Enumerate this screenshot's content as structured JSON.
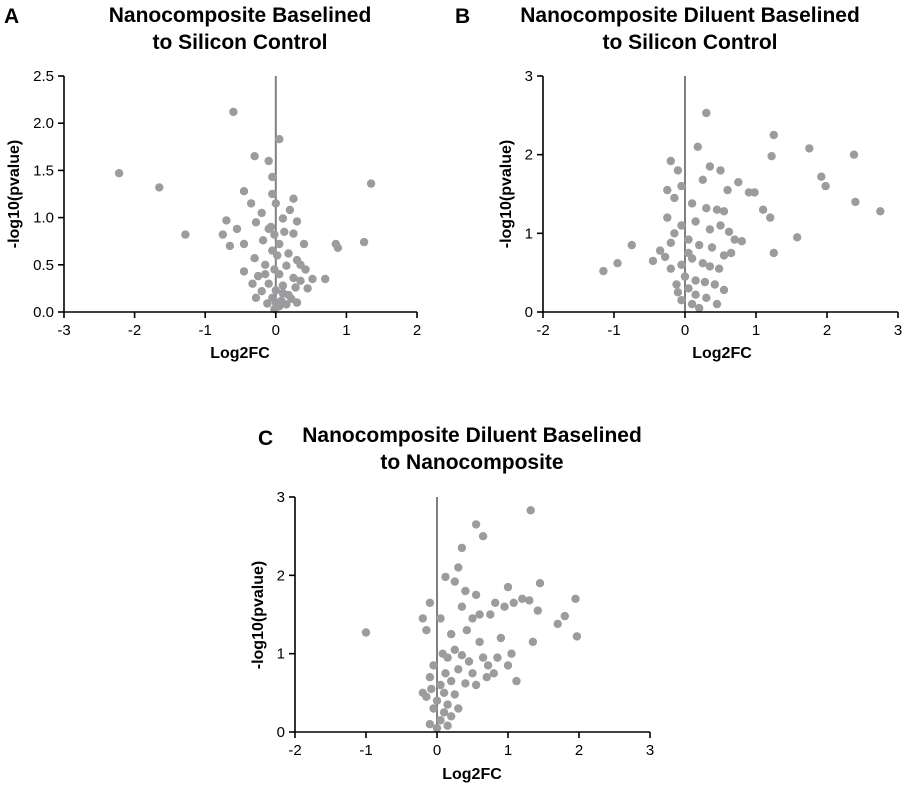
{
  "chart_data": [
    {
      "panel": "A",
      "type": "scatter",
      "title_lines": [
        "Nanocomposite Baselined",
        "to Silicon Control"
      ],
      "xlabel": "Log2FC",
      "ylabel": "-log10(pvalue)",
      "xlim": [
        -3,
        2
      ],
      "ylim": [
        0,
        2.5
      ],
      "xticks": [
        -3,
        -2,
        -1,
        0,
        1,
        2
      ],
      "xtick_labels": [
        "-3",
        "-2",
        "-1",
        "0",
        "1",
        "2"
      ],
      "yticks": [
        0,
        0.5,
        1.0,
        1.5,
        2.0,
        2.5
      ],
      "ytick_labels": [
        "0.0",
        "0.5",
        "1.0",
        "1.5",
        "2.0",
        "2.5"
      ],
      "color": "#9c9c9e",
      "line_color": "#808080",
      "points": [
        [
          -2.22,
          1.47
        ],
        [
          -1.65,
          1.32
        ],
        [
          -1.28,
          0.82
        ],
        [
          -0.6,
          2.12
        ],
        [
          0.05,
          1.83
        ],
        [
          1.35,
          1.36
        ],
        [
          -0.3,
          1.65
        ],
        [
          -0.1,
          1.6
        ],
        [
          -0.05,
          1.43
        ],
        [
          -0.45,
          1.28
        ],
        [
          -0.35,
          1.15
        ],
        [
          -0.05,
          1.25
        ],
        [
          0.0,
          1.15
        ],
        [
          0.25,
          1.2
        ],
        [
          0.2,
          1.08
        ],
        [
          -0.2,
          1.05
        ],
        [
          -0.7,
          0.97
        ],
        [
          -0.55,
          0.88
        ],
        [
          -0.75,
          0.82
        ],
        [
          -0.65,
          0.7
        ],
        [
          -0.45,
          0.72
        ],
        [
          -0.28,
          0.95
        ],
        [
          -0.1,
          0.88
        ],
        [
          -0.18,
          0.76
        ],
        [
          0.1,
          0.99
        ],
        [
          0.3,
          0.96
        ],
        [
          0.12,
          0.85
        ],
        [
          0.25,
          0.83
        ],
        [
          0.4,
          0.72
        ],
        [
          0.05,
          0.72
        ],
        [
          -0.05,
          0.65
        ],
        [
          0.18,
          0.62
        ],
        [
          -0.3,
          0.57
        ],
        [
          0.3,
          0.55
        ],
        [
          -0.15,
          0.5
        ],
        [
          0.15,
          0.49
        ],
        [
          0.42,
          0.45
        ],
        [
          -0.45,
          0.43
        ],
        [
          -0.25,
          0.38
        ],
        [
          0.05,
          0.4
        ],
        [
          0.25,
          0.36
        ],
        [
          0.35,
          0.33
        ],
        [
          0.52,
          0.35
        ],
        [
          -0.1,
          0.3
        ],
        [
          0.1,
          0.28
        ],
        [
          0.28,
          0.26
        ],
        [
          -0.2,
          0.22
        ],
        [
          0.0,
          0.23
        ],
        [
          0.18,
          0.18
        ],
        [
          -0.05,
          0.15
        ],
        [
          0.08,
          0.12
        ],
        [
          -0.12,
          0.09
        ],
        [
          0.05,
          0.06
        ],
        [
          0.15,
          0.08
        ],
        [
          -0.02,
          0.03
        ],
        [
          0.22,
          0.14
        ],
        [
          -0.28,
          0.15
        ],
        [
          0.7,
          0.35
        ],
        [
          0.85,
          0.72
        ],
        [
          0.88,
          0.68
        ],
        [
          1.25,
          0.74
        ],
        [
          -0.07,
          0.9
        ],
        [
          -0.02,
          0.82
        ],
        [
          0.02,
          0.6
        ],
        [
          -0.02,
          0.45
        ],
        [
          0.35,
          0.5
        ],
        [
          0.45,
          0.25
        ],
        [
          0.1,
          0.2
        ],
        [
          -0.33,
          0.3
        ],
        [
          0.0,
          0.1
        ],
        [
          0.3,
          0.1
        ],
        [
          -0.15,
          0.4
        ]
      ]
    },
    {
      "panel": "B",
      "type": "scatter",
      "title_lines": [
        "Nanocomposite Diluent Baselined",
        "to Silicon Control"
      ],
      "xlabel": "Log2FC",
      "ylabel": "-log10(pvalue)",
      "xlim": [
        -2,
        3
      ],
      "ylim": [
        0,
        3
      ],
      "xticks": [
        -2,
        -1,
        0,
        1,
        2,
        3
      ],
      "xtick_labels": [
        "-2",
        "-1",
        "0",
        "1",
        "2",
        "3"
      ],
      "yticks": [
        0,
        1,
        2,
        3
      ],
      "ytick_labels": [
        "0",
        "1",
        "2",
        "3"
      ],
      "color": "#9c9c9e",
      "line_color": "#808080",
      "points": [
        [
          -1.15,
          0.52
        ],
        [
          -0.95,
          0.62
        ],
        [
          -0.75,
          0.85
        ],
        [
          -0.45,
          0.65
        ],
        [
          -0.35,
          0.78
        ],
        [
          -0.25,
          1.55
        ],
        [
          -0.2,
          1.92
        ],
        [
          -0.15,
          1.45
        ],
        [
          -0.1,
          1.8
        ],
        [
          -0.05,
          1.6
        ],
        [
          0.3,
          2.53
        ],
        [
          0.18,
          2.1
        ],
        [
          0.35,
          1.85
        ],
        [
          0.5,
          1.8
        ],
        [
          0.25,
          1.68
        ],
        [
          0.6,
          1.55
        ],
        [
          0.75,
          1.65
        ],
        [
          0.9,
          1.52
        ],
        [
          0.98,
          1.52
        ],
        [
          1.25,
          2.25
        ],
        [
          1.22,
          1.98
        ],
        [
          1.75,
          2.08
        ],
        [
          1.92,
          1.72
        ],
        [
          1.98,
          1.6
        ],
        [
          2.38,
          2.0
        ],
        [
          2.4,
          1.4
        ],
        [
          2.75,
          1.28
        ],
        [
          1.1,
          1.3
        ],
        [
          1.2,
          1.2
        ],
        [
          1.58,
          0.95
        ],
        [
          1.25,
          0.75
        ],
        [
          0.1,
          1.38
        ],
        [
          0.3,
          1.32
        ],
        [
          0.45,
          1.3
        ],
        [
          0.55,
          1.28
        ],
        [
          0.15,
          1.15
        ],
        [
          0.35,
          1.05
        ],
        [
          0.5,
          1.1
        ],
        [
          0.7,
          0.92
        ],
        [
          0.8,
          0.9
        ],
        [
          -0.25,
          1.2
        ],
        [
          -0.15,
          1.0
        ],
        [
          -0.05,
          1.1
        ],
        [
          -0.2,
          0.88
        ],
        [
          0.05,
          0.92
        ],
        [
          0.2,
          0.85
        ],
        [
          0.38,
          0.82
        ],
        [
          0.55,
          0.72
        ],
        [
          0.65,
          0.75
        ],
        [
          0.1,
          0.68
        ],
        [
          0.25,
          0.62
        ],
        [
          0.35,
          0.58
        ],
        [
          0.48,
          0.55
        ],
        [
          -0.05,
          0.6
        ],
        [
          -0.2,
          0.55
        ],
        [
          0.0,
          0.45
        ],
        [
          0.15,
          0.4
        ],
        [
          0.28,
          0.38
        ],
        [
          0.42,
          0.35
        ],
        [
          0.05,
          0.3
        ],
        [
          -0.1,
          0.25
        ],
        [
          0.15,
          0.22
        ],
        [
          0.3,
          0.18
        ],
        [
          -0.05,
          0.15
        ],
        [
          0.1,
          0.1
        ],
        [
          0.2,
          0.05
        ],
        [
          -0.12,
          0.35
        ],
        [
          0.45,
          0.1
        ],
        [
          0.55,
          0.28
        ],
        [
          0.05,
          0.75
        ],
        [
          0.62,
          1.02
        ],
        [
          -0.28,
          0.7
        ]
      ]
    },
    {
      "panel": "C",
      "type": "scatter",
      "title_lines": [
        "Nanocomposite Diluent Baselined",
        "to Nanocomposite"
      ],
      "xlabel": "Log2FC",
      "ylabel": "-log10(pvalue)",
      "xlim": [
        -2,
        3
      ],
      "ylim": [
        0,
        3
      ],
      "xticks": [
        -2,
        -1,
        0,
        1,
        2,
        3
      ],
      "xtick_labels": [
        "-2",
        "-1",
        "0",
        "1",
        "2",
        "3"
      ],
      "yticks": [
        0,
        1,
        2,
        3
      ],
      "ytick_labels": [
        "0",
        "1",
        "2",
        "3"
      ],
      "color": "#9c9c9e",
      "line_color": "#808080",
      "points": [
        [
          -1.0,
          1.27
        ],
        [
          -0.2,
          1.45
        ],
        [
          -0.1,
          1.65
        ],
        [
          -0.15,
          1.3
        ],
        [
          0.05,
          1.45
        ],
        [
          0.35,
          2.35
        ],
        [
          0.3,
          2.1
        ],
        [
          0.25,
          1.92
        ],
        [
          0.12,
          1.98
        ],
        [
          0.55,
          2.65
        ],
        [
          0.65,
          2.5
        ],
        [
          1.32,
          2.83
        ],
        [
          0.4,
          1.8
        ],
        [
          0.55,
          1.75
        ],
        [
          0.35,
          1.6
        ],
        [
          0.6,
          1.5
        ],
        [
          0.5,
          1.45
        ],
        [
          0.75,
          1.5
        ],
        [
          0.82,
          1.65
        ],
        [
          0.95,
          1.6
        ],
        [
          1.0,
          1.85
        ],
        [
          1.08,
          1.65
        ],
        [
          1.2,
          1.7
        ],
        [
          1.3,
          1.68
        ],
        [
          1.45,
          1.9
        ],
        [
          1.42,
          1.55
        ],
        [
          1.7,
          1.38
        ],
        [
          1.8,
          1.48
        ],
        [
          1.95,
          1.7
        ],
        [
          1.97,
          1.22
        ],
        [
          1.35,
          1.15
        ],
        [
          1.0,
          0.85
        ],
        [
          1.05,
          1.0
        ],
        [
          1.12,
          0.65
        ],
        [
          0.65,
          0.95
        ],
        [
          0.72,
          0.85
        ],
        [
          0.7,
          0.7
        ],
        [
          0.25,
          1.05
        ],
        [
          0.15,
          0.95
        ],
        [
          0.35,
          0.98
        ],
        [
          0.45,
          0.9
        ],
        [
          0.3,
          0.8
        ],
        [
          0.5,
          0.75
        ],
        [
          0.55,
          0.6
        ],
        [
          0.12,
          0.75
        ],
        [
          0.2,
          0.65
        ],
        [
          0.4,
          0.62
        ],
        [
          -0.05,
          0.85
        ],
        [
          -0.1,
          0.7
        ],
        [
          0.05,
          0.6
        ],
        [
          0.1,
          0.5
        ],
        [
          0.25,
          0.48
        ],
        [
          -0.15,
          0.45
        ],
        [
          0.0,
          0.4
        ],
        [
          0.15,
          0.35
        ],
        [
          -0.05,
          0.3
        ],
        [
          0.1,
          0.25
        ],
        [
          0.2,
          0.2
        ],
        [
          0.05,
          0.15
        ],
        [
          -0.1,
          0.1
        ],
        [
          0.0,
          0.05
        ],
        [
          0.15,
          0.08
        ],
        [
          -0.08,
          0.55
        ],
        [
          0.3,
          0.3
        ],
        [
          0.2,
          1.25
        ],
        [
          0.6,
          1.15
        ],
        [
          0.42,
          1.3
        ],
        [
          0.9,
          1.2
        ],
        [
          0.85,
          0.95
        ],
        [
          0.8,
          0.75
        ],
        [
          -0.2,
          0.5
        ],
        [
          0.08,
          1.0
        ]
      ]
    }
  ]
}
